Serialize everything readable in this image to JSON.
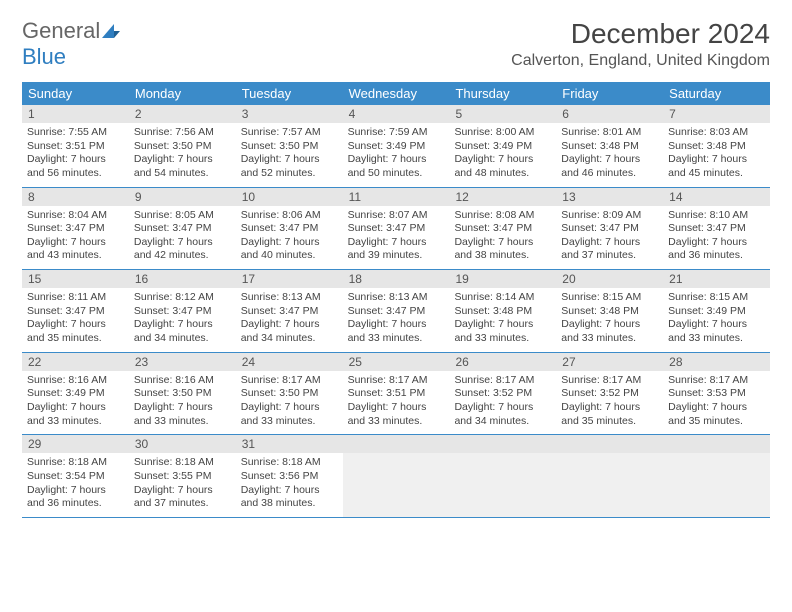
{
  "logo": {
    "part1": "General",
    "part2": "Blue"
  },
  "title": "December 2024",
  "location": "Calverton, England, United Kingdom",
  "colors": {
    "header_bg": "#3b8bc9",
    "daynum_bg": "#e6e6e6",
    "border": "#3b8bc9",
    "logo_blue": "#2f7ec0"
  },
  "weekdays": [
    "Sunday",
    "Monday",
    "Tuesday",
    "Wednesday",
    "Thursday",
    "Friday",
    "Saturday"
  ],
  "days": [
    {
      "n": "1",
      "sr": "7:55 AM",
      "ss": "3:51 PM",
      "dl": "7 hours and 56 minutes."
    },
    {
      "n": "2",
      "sr": "7:56 AM",
      "ss": "3:50 PM",
      "dl": "7 hours and 54 minutes."
    },
    {
      "n": "3",
      "sr": "7:57 AM",
      "ss": "3:50 PM",
      "dl": "7 hours and 52 minutes."
    },
    {
      "n": "4",
      "sr": "7:59 AM",
      "ss": "3:49 PM",
      "dl": "7 hours and 50 minutes."
    },
    {
      "n": "5",
      "sr": "8:00 AM",
      "ss": "3:49 PM",
      "dl": "7 hours and 48 minutes."
    },
    {
      "n": "6",
      "sr": "8:01 AM",
      "ss": "3:48 PM",
      "dl": "7 hours and 46 minutes."
    },
    {
      "n": "7",
      "sr": "8:03 AM",
      "ss": "3:48 PM",
      "dl": "7 hours and 45 minutes."
    },
    {
      "n": "8",
      "sr": "8:04 AM",
      "ss": "3:47 PM",
      "dl": "7 hours and 43 minutes."
    },
    {
      "n": "9",
      "sr": "8:05 AM",
      "ss": "3:47 PM",
      "dl": "7 hours and 42 minutes."
    },
    {
      "n": "10",
      "sr": "8:06 AM",
      "ss": "3:47 PM",
      "dl": "7 hours and 40 minutes."
    },
    {
      "n": "11",
      "sr": "8:07 AM",
      "ss": "3:47 PM",
      "dl": "7 hours and 39 minutes."
    },
    {
      "n": "12",
      "sr": "8:08 AM",
      "ss": "3:47 PM",
      "dl": "7 hours and 38 minutes."
    },
    {
      "n": "13",
      "sr": "8:09 AM",
      "ss": "3:47 PM",
      "dl": "7 hours and 37 minutes."
    },
    {
      "n": "14",
      "sr": "8:10 AM",
      "ss": "3:47 PM",
      "dl": "7 hours and 36 minutes."
    },
    {
      "n": "15",
      "sr": "8:11 AM",
      "ss": "3:47 PM",
      "dl": "7 hours and 35 minutes."
    },
    {
      "n": "16",
      "sr": "8:12 AM",
      "ss": "3:47 PM",
      "dl": "7 hours and 34 minutes."
    },
    {
      "n": "17",
      "sr": "8:13 AM",
      "ss": "3:47 PM",
      "dl": "7 hours and 34 minutes."
    },
    {
      "n": "18",
      "sr": "8:13 AM",
      "ss": "3:47 PM",
      "dl": "7 hours and 33 minutes."
    },
    {
      "n": "19",
      "sr": "8:14 AM",
      "ss": "3:48 PM",
      "dl": "7 hours and 33 minutes."
    },
    {
      "n": "20",
      "sr": "8:15 AM",
      "ss": "3:48 PM",
      "dl": "7 hours and 33 minutes."
    },
    {
      "n": "21",
      "sr": "8:15 AM",
      "ss": "3:49 PM",
      "dl": "7 hours and 33 minutes."
    },
    {
      "n": "22",
      "sr": "8:16 AM",
      "ss": "3:49 PM",
      "dl": "7 hours and 33 minutes."
    },
    {
      "n": "23",
      "sr": "8:16 AM",
      "ss": "3:50 PM",
      "dl": "7 hours and 33 minutes."
    },
    {
      "n": "24",
      "sr": "8:17 AM",
      "ss": "3:50 PM",
      "dl": "7 hours and 33 minutes."
    },
    {
      "n": "25",
      "sr": "8:17 AM",
      "ss": "3:51 PM",
      "dl": "7 hours and 33 minutes."
    },
    {
      "n": "26",
      "sr": "8:17 AM",
      "ss": "3:52 PM",
      "dl": "7 hours and 34 minutes."
    },
    {
      "n": "27",
      "sr": "8:17 AM",
      "ss": "3:52 PM",
      "dl": "7 hours and 35 minutes."
    },
    {
      "n": "28",
      "sr": "8:17 AM",
      "ss": "3:53 PM",
      "dl": "7 hours and 35 minutes."
    },
    {
      "n": "29",
      "sr": "8:18 AM",
      "ss": "3:54 PM",
      "dl": "7 hours and 36 minutes."
    },
    {
      "n": "30",
      "sr": "8:18 AM",
      "ss": "3:55 PM",
      "dl": "7 hours and 37 minutes."
    },
    {
      "n": "31",
      "sr": "8:18 AM",
      "ss": "3:56 PM",
      "dl": "7 hours and 38 minutes."
    }
  ],
  "labels": {
    "sunrise": "Sunrise:",
    "sunset": "Sunset:",
    "daylight": "Daylight:"
  }
}
